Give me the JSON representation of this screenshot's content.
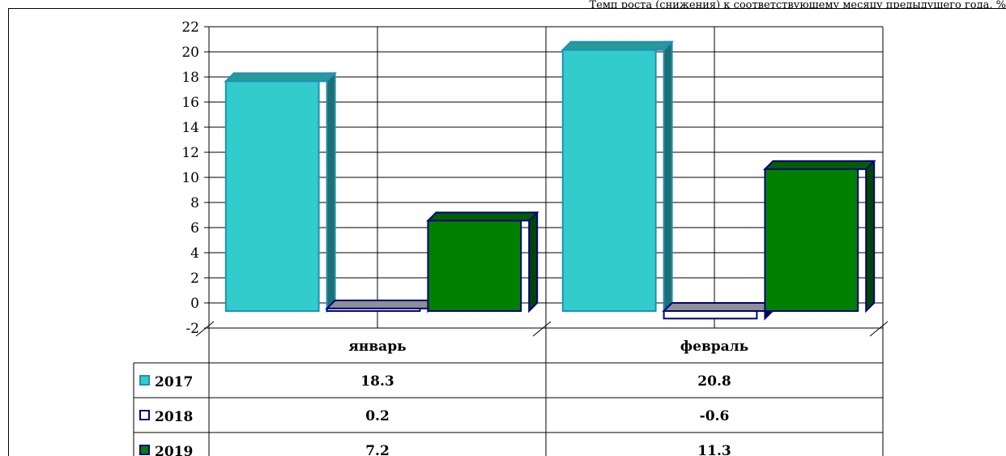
{
  "header_note": "Темп роста (снижения) к соответствующему месяцу предыдущего года, %",
  "chart_data": {
    "type": "bar",
    "categories": [
      "январь",
      "февраль"
    ],
    "series": [
      {
        "name": "2017",
        "values": [
          18.3,
          20.8
        ],
        "labels": [
          "18.3",
          "20.8"
        ],
        "color": "#33CCCC",
        "edge": "#1E8FB8"
      },
      {
        "name": "2018",
        "values": [
          0.2,
          -0.6
        ],
        "labels": [
          "0.2",
          "-0.6"
        ],
        "color": "#FFFFFF",
        "edge": "#000080"
      },
      {
        "name": "2019",
        "values": [
          7.2,
          11.3
        ],
        "labels": [
          "7.2",
          "11.3"
        ],
        "color": "#008000",
        "edge": "#000080"
      }
    ],
    "ylim": [
      -2,
      22
    ],
    "yticks": [
      -2,
      0,
      2,
      4,
      6,
      8,
      10,
      12,
      14,
      16,
      18,
      20,
      22
    ],
    "grid": true,
    "legend": "data-table"
  }
}
